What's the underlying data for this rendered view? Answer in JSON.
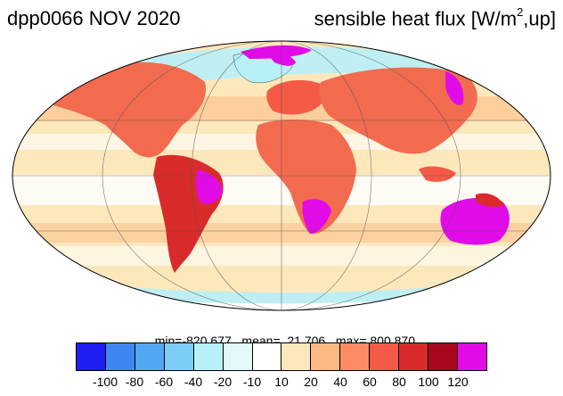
{
  "header": {
    "title_left": "dpp0066 NOV 2020",
    "title_right_main": "sensible heat flux [W/m",
    "title_right_sup": "2",
    "title_right_end": ",up]"
  },
  "stats": {
    "text": "min=-820.677   mean=  21.706   max= 800.870"
  },
  "colorbar": {
    "colors": [
      "#1e1ef5",
      "#3f86f2",
      "#52a6f5",
      "#7ccdf8",
      "#b8f0f8",
      "#e3f9fa",
      "#ffffff",
      "#fde8bc",
      "#fdb984",
      "#fc8c63",
      "#f45a45",
      "#d92b2b",
      "#a8081f",
      "#e10be8"
    ],
    "tick_labels": [
      "-100",
      "-80",
      "-60",
      "-40",
      "-20",
      "-10",
      "10",
      "20",
      "40",
      "60",
      "80",
      "100",
      "120"
    ]
  },
  "map": {
    "projection": "Mollweide",
    "ocean_color": "#fde8bc",
    "land_color": "#f36b4f",
    "hot_land_color": "#e10be8",
    "cold_color": "#b8f0f8"
  }
}
